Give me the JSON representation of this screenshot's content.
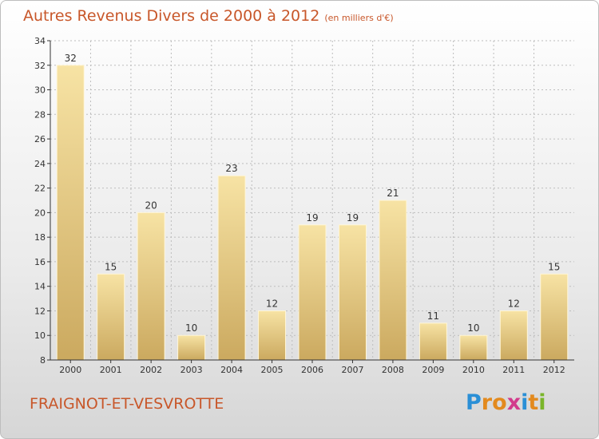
{
  "title": "Autres Revenus Divers de 2000 à 2012",
  "unit_label": "(en milliers d'€)",
  "commune": "FRAIGNOT-ET-VESVROTTE",
  "logo": {
    "text": "Proxiti",
    "letters": [
      {
        "char": "P",
        "color": "#2a8fd6"
      },
      {
        "char": "r",
        "color": "#e38a1e"
      },
      {
        "char": "o",
        "color": "#e38a1e"
      },
      {
        "char": "x",
        "color": "#d23a8c"
      },
      {
        "char": "i",
        "color": "#2a8fd6"
      },
      {
        "char": "t",
        "color": "#e38a1e"
      },
      {
        "char": "i",
        "color": "#7ab52a"
      }
    ]
  },
  "colors": {
    "bar_light": "#f7e3a4",
    "bar_dark": "#cba95f",
    "axis": "#333333",
    "grid": "#bdbdbd",
    "title": "#c8572a"
  },
  "chart_data": {
    "type": "bar",
    "categories": [
      "2000",
      "2001",
      "2002",
      "2003",
      "2004",
      "2005",
      "2006",
      "2007",
      "2008",
      "2009",
      "2010",
      "2011",
      "2012"
    ],
    "values": [
      32,
      15,
      20,
      10,
      23,
      12,
      19,
      19,
      21,
      11,
      10,
      12,
      15
    ],
    "ylim": [
      8,
      34
    ],
    "yticks": [
      8,
      10,
      12,
      14,
      16,
      18,
      20,
      22,
      24,
      26,
      28,
      30,
      32,
      34
    ],
    "grid": true,
    "data_labels": true
  }
}
